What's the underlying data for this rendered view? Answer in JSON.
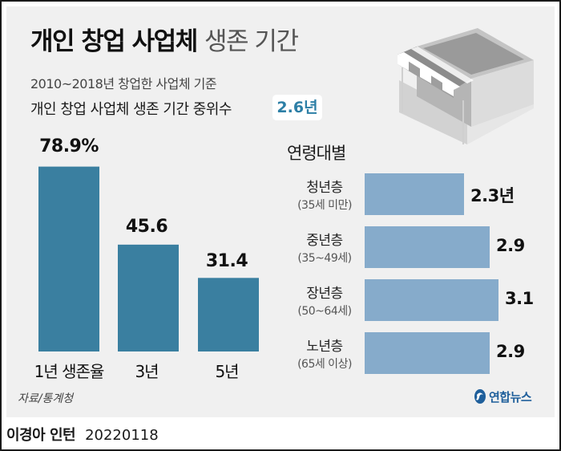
{
  "title": {
    "bold": "개인 창업 사업체",
    "light": "생존 기간"
  },
  "subtitle": "2010~2018년 창업한 사업체 기준",
  "median": {
    "label": "개인 창업 사업체 생존 기간 중위수",
    "value": "2.6년"
  },
  "colors": {
    "survival_bar": "#3a7fa0",
    "age_bar": "#86abcb",
    "badge_text": "#2d7fa6",
    "panel": "#f0f0f0"
  },
  "chart_data": [
    {
      "type": "bar",
      "categories": [
        "1년 생존율",
        "3년",
        "5년"
      ],
      "values": [
        78.9,
        45.6,
        31.4
      ],
      "value_labels": [
        "78.9%",
        "45.6",
        "31.4"
      ],
      "unit": "%",
      "ylim": [
        0,
        100
      ],
      "grid": false
    },
    {
      "type": "bar",
      "orientation": "horizontal",
      "title": "연령대별",
      "categories": [
        {
          "name": "청년층",
          "range": "(35세 미만)"
        },
        {
          "name": "중년층",
          "range": "(35~49세)"
        },
        {
          "name": "장년층",
          "range": "(50~64세)"
        },
        {
          "name": "노년층",
          "range": "(65세 이상)"
        }
      ],
      "values": [
        2.3,
        2.9,
        3.1,
        2.9
      ],
      "value_labels": [
        "2.3년",
        "2.9",
        "3.1",
        "2.9"
      ],
      "unit": "년",
      "xlim": [
        0,
        3.1
      ],
      "grid": false
    }
  ],
  "source": "자료/통계청",
  "agency": "연합뉴스",
  "footer": {
    "author": "이경아 인턴",
    "date": "20220118"
  }
}
